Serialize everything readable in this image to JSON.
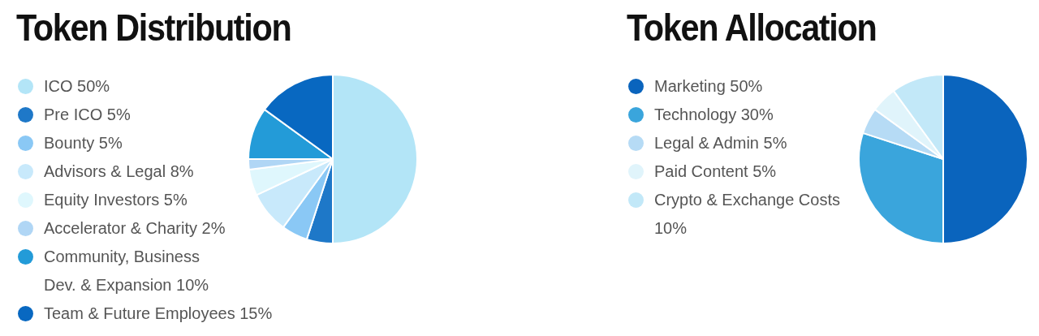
{
  "chart_data": [
    {
      "type": "pie",
      "title": "Token Distribution",
      "legend": "left",
      "categories": [
        "ICO 50%",
        "Pre ICO 5%",
        "Bounty 5%",
        "Advisors & Legal 8%",
        "Equity Investors 5%",
        "Accelerator & Charity 2%",
        "Community, Business Dev. & Expansion 10%",
        "Team & Future Employees 15%"
      ],
      "values": [
        50,
        5,
        5,
        8,
        5,
        2,
        10,
        15
      ],
      "colors": [
        "#b3e5f7",
        "#1e78c8",
        "#8ac8f5",
        "#c8e9fb",
        "#dff7fd",
        "#b0d6f5",
        "#239bd8",
        "#0868c1"
      ]
    },
    {
      "type": "pie",
      "title": "Token Allocation",
      "legend": "left",
      "categories": [
        "Marketing 50%",
        "Technology 30%",
        "Legal & Admin 5%",
        "Paid Content 5%",
        "Crypto & Exchange Costs 10%"
      ],
      "values": [
        50,
        30,
        5,
        5,
        10
      ],
      "colors": [
        "#0a64bd",
        "#3aa5dc",
        "#b6dbf5",
        "#e0f4fb",
        "#c2e8f8"
      ]
    }
  ]
}
